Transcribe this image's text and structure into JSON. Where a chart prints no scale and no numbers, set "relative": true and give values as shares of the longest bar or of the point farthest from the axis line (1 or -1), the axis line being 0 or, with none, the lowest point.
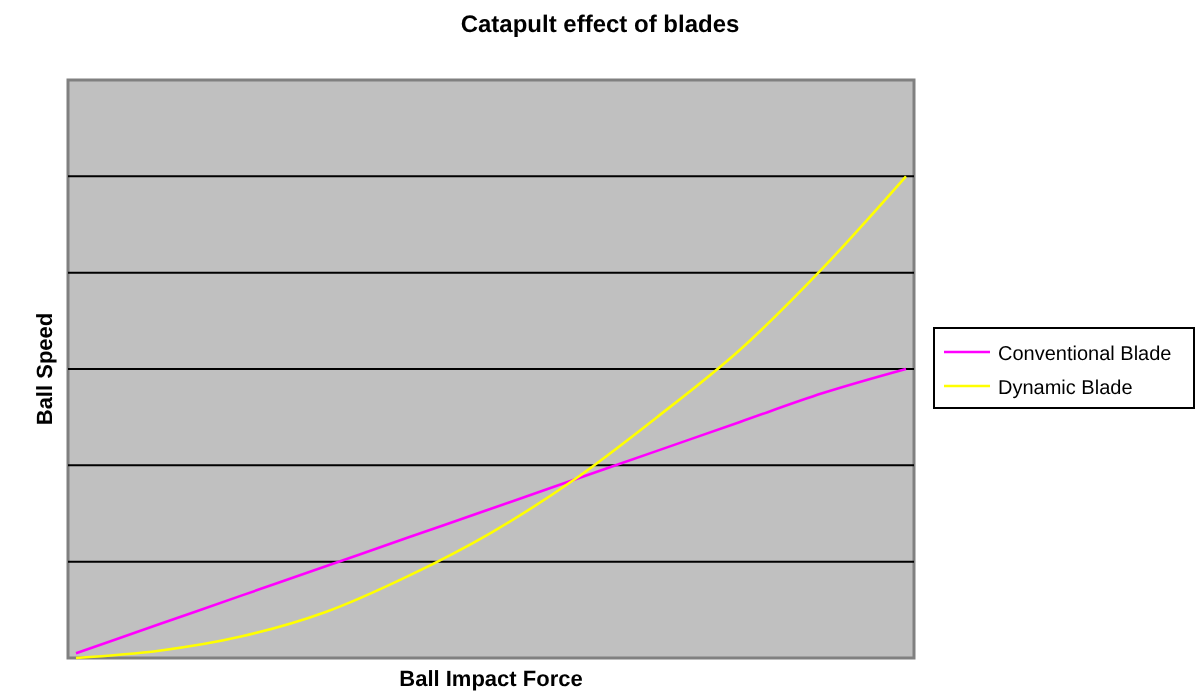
{
  "chart_data": {
    "type": "line",
    "title": "Catapult effect of blades",
    "xlabel": "Ball Impact Force",
    "ylabel": "Ball Speed",
    "relative": true,
    "grid": "y",
    "legend": "right",
    "line_style": "solid",
    "categories": [
      null,
      null,
      null,
      null,
      null,
      null,
      null,
      null,
      null,
      null,
      null
    ],
    "series": [
      {
        "name": "Conventional Blade",
        "color": "#ff00ff",
        "values": [
          0.01,
          0.07,
          0.13,
          0.19,
          0.25,
          0.31,
          0.37,
          0.43,
          0.49,
          0.55,
          0.6
        ]
      },
      {
        "name": "Dynamic Blade",
        "color": "#ffff00",
        "values": [
          0,
          0.015,
          0.045,
          0.095,
          0.17,
          0.26,
          0.37,
          0.5,
          0.64,
          0.81,
          1.0
        ]
      }
    ]
  }
}
